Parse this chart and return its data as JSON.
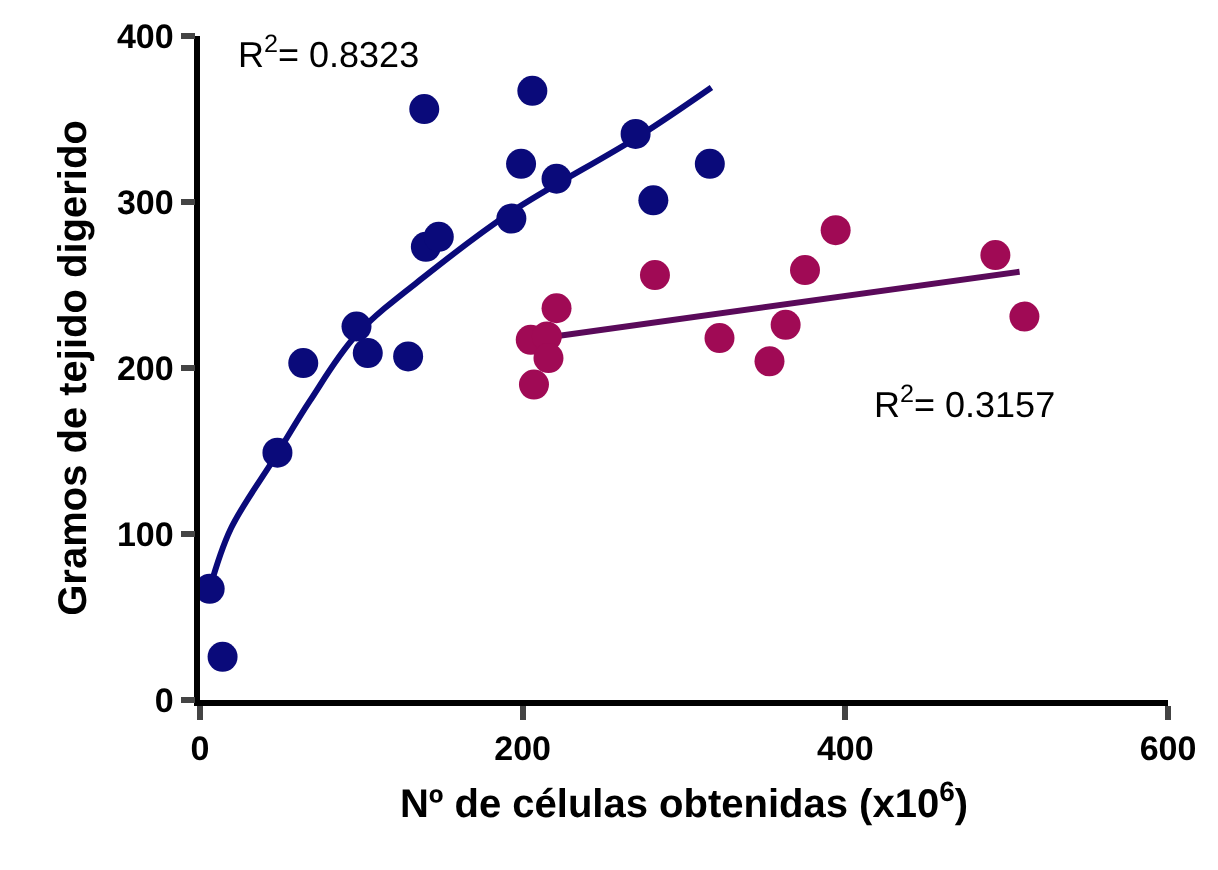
{
  "chart_data": {
    "type": "scatter",
    "xlabel": "Nº de células obtenidas (x10$^{6}$)",
    "ylabel": "Gramos de tejido digerido",
    "xlim": [
      0,
      600
    ],
    "xticks": [
      0,
      200,
      400,
      600
    ],
    "ylim": [
      0,
      400
    ],
    "yticks": [
      0,
      100,
      200,
      300,
      400
    ],
    "grid": false,
    "legend": false,
    "series": [
      {
        "marker": "circle",
        "color": "#0a0a7a",
        "x": [
          6,
          14,
          48,
          64,
          97,
          104,
          129,
          139,
          140,
          148,
          193,
          199,
          206,
          221,
          270,
          281,
          316
        ],
        "values": [
          67,
          26,
          149,
          203,
          225,
          209,
          207,
          356,
          273,
          279,
          290,
          323,
          367,
          314,
          341,
          301,
          323
        ]
      },
      {
        "marker": "circle",
        "color": "#a00a55",
        "x": [
          205,
          215,
          221,
          216,
          207,
          282,
          322,
          353,
          363,
          375,
          394,
          493,
          511
        ],
        "values": [
          217,
          219,
          236,
          206,
          190,
          256,
          218,
          204,
          226,
          259,
          283,
          268,
          231
        ]
      },
      {
        "type": "line",
        "marker": "none",
        "color": "#0a0a7a",
        "line_style": "solid",
        "x": [
          6,
          19,
          47,
          68,
          97,
          143,
          193,
          271,
          317
        ],
        "values": [
          67,
          103,
          147,
          180,
          220,
          258,
          294,
          339,
          369
        ]
      },
      {
        "type": "line",
        "marker": "none",
        "color": "#5a0a5a",
        "line_style": "solid",
        "x": [
          205,
          508
        ],
        "values": [
          217,
          258
        ]
      }
    ],
    "annotations": [
      "R$^{2}$= 0.8323",
      "R$^{2}$= 0.3157"
    ]
  }
}
